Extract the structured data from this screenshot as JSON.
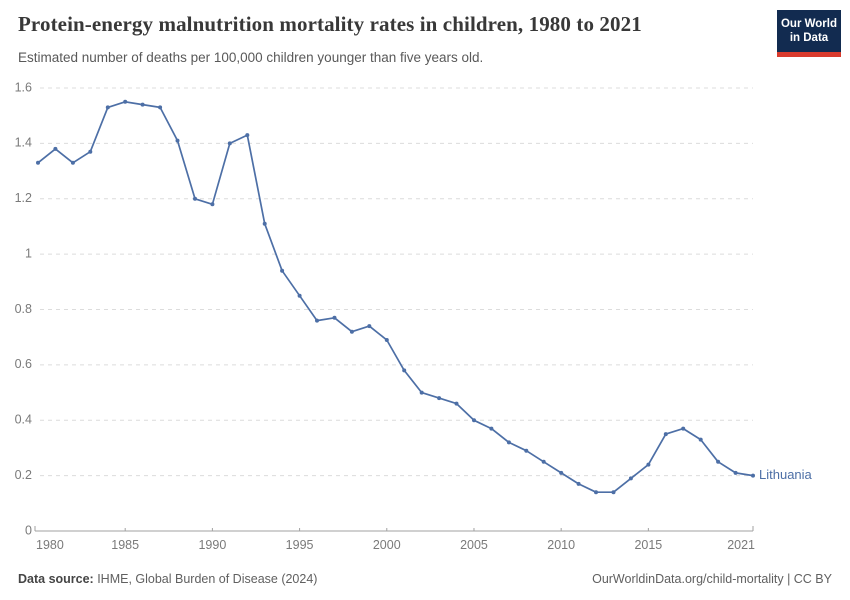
{
  "header": {
    "title": "Protein-energy malnutrition mortality rates in children, 1980 to 2021",
    "subtitle": "Estimated number of deaths per 100,000 children younger than five years old.",
    "logo_line1": "Our World",
    "logo_line2": "in Data"
  },
  "footer": {
    "source_label": "Data source:",
    "source_text": " IHME, Global Burden of Disease (2024)",
    "credit": "OurWorldinData.org/child-mortality | CC BY"
  },
  "colors": {
    "line": "#4d6fa6",
    "grid": "#dcdcdc",
    "axis": "#a1a1a1",
    "tick_text": "#7a7a7a",
    "logo_bg": "#122b50",
    "logo_bar": "#d93a2d"
  },
  "chart_data": {
    "type": "line",
    "title": "Protein-energy malnutrition mortality rates in children, 1980 to 2021",
    "xlabel": "",
    "ylabel": "Estimated deaths per 100,000 children younger than five",
    "xlim": [
      1980,
      2021
    ],
    "ylim": [
      0,
      1.6
    ],
    "xticks": [
      1980,
      1985,
      1990,
      1995,
      2000,
      2005,
      2010,
      2015,
      2021
    ],
    "yticks": [
      0,
      0.2,
      0.4,
      0.6,
      0.8,
      1,
      1.2,
      1.4,
      1.6
    ],
    "grid": "dashed-horizontal",
    "legend": "end-of-line-label",
    "x": [
      1980,
      1981,
      1982,
      1983,
      1984,
      1985,
      1986,
      1987,
      1988,
      1989,
      1990,
      1991,
      1992,
      1993,
      1994,
      1995,
      1996,
      1997,
      1998,
      1999,
      2000,
      2001,
      2002,
      2003,
      2004,
      2005,
      2006,
      2007,
      2008,
      2009,
      2010,
      2011,
      2012,
      2013,
      2014,
      2015,
      2016,
      2017,
      2018,
      2019,
      2020,
      2021
    ],
    "series": [
      {
        "name": "Lithuania",
        "color": "#4d6fa6",
        "values": [
          1.33,
          1.38,
          1.33,
          1.37,
          1.53,
          1.55,
          1.54,
          1.53,
          1.41,
          1.2,
          1.18,
          1.4,
          1.43,
          1.11,
          0.94,
          0.85,
          0.76,
          0.77,
          0.72,
          0.74,
          0.69,
          0.58,
          0.5,
          0.48,
          0.46,
          0.4,
          0.37,
          0.32,
          0.29,
          0.25,
          0.21,
          0.17,
          0.14,
          0.14,
          0.19,
          0.24,
          0.35,
          0.37,
          0.33,
          0.25,
          0.21,
          0.2
        ]
      }
    ]
  }
}
